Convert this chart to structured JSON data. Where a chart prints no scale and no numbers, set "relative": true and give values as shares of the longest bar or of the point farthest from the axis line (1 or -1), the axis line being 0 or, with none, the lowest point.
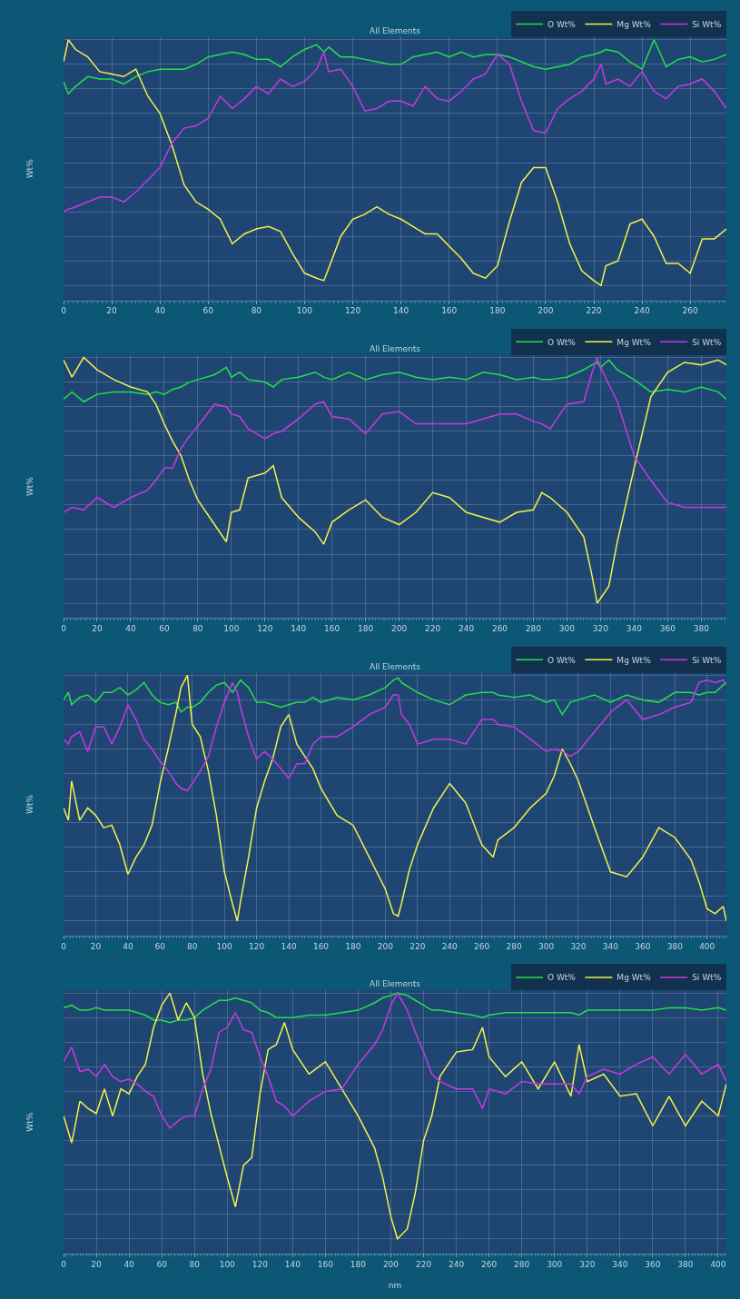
{
  "chart_data": [
    {
      "type": "line",
      "title": "All Elements",
      "ylabel": "Wt%",
      "relative": true,
      "grid": true,
      "legend": "top right",
      "marker": "none",
      "line_style": "solid",
      "xlim": [
        0,
        275
      ],
      "xticks": [
        0,
        20,
        40,
        60,
        80,
        100,
        120,
        140,
        160,
        180,
        200,
        220,
        240,
        260
      ],
      "x": [
        0,
        2,
        5,
        10,
        15,
        20,
        25,
        30,
        35,
        40,
        45,
        50,
        55,
        60,
        65,
        70,
        75,
        80,
        85,
        90,
        95,
        100,
        105,
        108,
        110,
        115,
        120,
        125,
        130,
        135,
        140,
        145,
        150,
        155,
        160,
        165,
        170,
        175,
        180,
        185,
        190,
        195,
        200,
        205,
        210,
        215,
        220,
        223,
        225,
        230,
        235,
        240,
        245,
        250,
        255,
        260,
        265,
        270,
        275
      ],
      "series": [
        {
          "name": "O Wt%",
          "color": "#22e04a",
          "values": [
            0.83,
            0.78,
            0.81,
            0.85,
            0.84,
            0.84,
            0.82,
            0.85,
            0.87,
            0.88,
            0.88,
            0.88,
            0.9,
            0.93,
            0.94,
            0.95,
            0.94,
            0.92,
            0.92,
            0.89,
            0.93,
            0.96,
            0.98,
            0.95,
            0.97,
            0.93,
            0.93,
            0.92,
            0.91,
            0.9,
            0.9,
            0.93,
            0.94,
            0.95,
            0.93,
            0.95,
            0.93,
            0.94,
            0.94,
            0.93,
            0.91,
            0.89,
            0.88,
            0.89,
            0.9,
            0.93,
            0.94,
            0.95,
            0.96,
            0.95,
            0.91,
            0.88,
            1.0,
            0.89,
            0.92,
            0.93,
            0.91,
            0.92,
            0.94
          ]
        },
        {
          "name": "Mg Wt%",
          "color": "#f2f24a",
          "values": [
            0.91,
            1.0,
            0.96,
            0.93,
            0.87,
            0.86,
            0.85,
            0.88,
            0.77,
            0.7,
            0.57,
            0.41,
            0.34,
            0.31,
            0.27,
            0.17,
            0.21,
            0.23,
            0.24,
            0.22,
            0.13,
            0.05,
            0.03,
            0.02,
            0.07,
            0.2,
            0.27,
            0.29,
            0.32,
            0.29,
            0.27,
            0.24,
            0.21,
            0.21,
            0.16,
            0.11,
            0.05,
            0.03,
            0.08,
            0.26,
            0.42,
            0.48,
            0.48,
            0.34,
            0.17,
            0.06,
            0.02,
            0,
            0.08,
            0.1,
            0.25,
            0.27,
            0.2,
            0.09,
            0.09,
            0.05,
            0.19,
            0.19,
            0.23
          ]
        },
        {
          "name": "Si Wt%",
          "color": "#c838e0",
          "values": [
            0.3,
            0.31,
            0.32,
            0.34,
            0.36,
            0.36,
            0.34,
            0.38,
            0.43,
            0.48,
            0.58,
            0.64,
            0.65,
            0.68,
            0.77,
            0.72,
            0.76,
            0.81,
            0.78,
            0.84,
            0.81,
            0.83,
            0.88,
            0.95,
            0.87,
            0.88,
            0.81,
            0.71,
            0.72,
            0.75,
            0.75,
            0.73,
            0.81,
            0.76,
            0.75,
            0.79,
            0.84,
            0.86,
            0.94,
            0.9,
            0.75,
            0.63,
            0.62,
            0.72,
            0.76,
            0.79,
            0.84,
            0.9,
            0.82,
            0.84,
            0.81,
            0.87,
            0.79,
            0.76,
            0.81,
            0.82,
            0.84,
            0.79,
            0.72
          ]
        }
      ]
    },
    {
      "type": "line",
      "title": "All Elements",
      "ylabel": "Wt%",
      "relative": true,
      "grid": true,
      "legend": "top right",
      "marker": "none",
      "line_style": "solid",
      "xlim": [
        0,
        395
      ],
      "xticks": [
        0,
        20,
        40,
        60,
        80,
        100,
        120,
        140,
        160,
        180,
        200,
        220,
        240,
        260,
        280,
        300,
        320,
        340,
        360,
        380
      ],
      "x": [
        0,
        5,
        12,
        20,
        30,
        40,
        50,
        55,
        60,
        65,
        70,
        75,
        80,
        90,
        97,
        100,
        105,
        110,
        120,
        125,
        130,
        140,
        150,
        155,
        160,
        170,
        180,
        190,
        200,
        210,
        220,
        230,
        240,
        250,
        260,
        270,
        280,
        285,
        290,
        300,
        310,
        315,
        318,
        320,
        325,
        330,
        340,
        350,
        360,
        370,
        380,
        390,
        395
      ],
      "series": [
        {
          "name": "O Wt%",
          "color": "#22e04a",
          "values": [
            0.83,
            0.86,
            0.82,
            0.85,
            0.86,
            0.86,
            0.85,
            0.86,
            0.85,
            0.87,
            0.88,
            0.9,
            0.91,
            0.93,
            0.96,
            0.92,
            0.94,
            0.91,
            0.9,
            0.88,
            0.91,
            0.92,
            0.94,
            0.92,
            0.91,
            0.94,
            0.91,
            0.93,
            0.94,
            0.92,
            0.91,
            0.92,
            0.91,
            0.94,
            0.93,
            0.91,
            0.92,
            0.91,
            0.91,
            0.92,
            0.95,
            0.97,
            0.98,
            0.96,
            0.99,
            0.95,
            0.91,
            0.86,
            0.87,
            0.86,
            0.88,
            0.86,
            0.83
          ]
        },
        {
          "name": "Mg Wt%",
          "color": "#f2f24a",
          "values": [
            0.99,
            0.92,
            1.0,
            0.95,
            0.91,
            0.88,
            0.86,
            0.81,
            0.73,
            0.66,
            0.6,
            0.5,
            0.42,
            0.32,
            0.25,
            0.37,
            0.38,
            0.51,
            0.53,
            0.56,
            0.43,
            0.35,
            0.29,
            0.24,
            0.33,
            0.38,
            0.42,
            0.35,
            0.32,
            0.37,
            0.45,
            0.43,
            0.37,
            0.35,
            0.33,
            0.37,
            0.38,
            0.45,
            0.43,
            0.37,
            0.27,
            0.11,
            0,
            0.02,
            0.07,
            0.25,
            0.55,
            0.84,
            0.94,
            0.98,
            0.97,
            0.99,
            0.97
          ]
        },
        {
          "name": "Si Wt%",
          "color": "#c838e0",
          "values": [
            0.37,
            0.39,
            0.38,
            0.43,
            0.39,
            0.43,
            0.46,
            0.5,
            0.55,
            0.55,
            0.63,
            0.68,
            0.72,
            0.81,
            0.8,
            0.77,
            0.76,
            0.71,
            0.67,
            0.69,
            0.7,
            0.75,
            0.81,
            0.82,
            0.76,
            0.75,
            0.69,
            0.77,
            0.78,
            0.73,
            0.73,
            0.73,
            0.73,
            0.75,
            0.77,
            0.77,
            0.74,
            0.73,
            0.71,
            0.81,
            0.82,
            0.94,
            1.0,
            0.96,
            0.89,
            0.82,
            0.6,
            0.5,
            0.41,
            0.39,
            0.39,
            0.39,
            0.39
          ]
        }
      ]
    },
    {
      "type": "line",
      "title": "All Elements",
      "ylabel": "Wt%",
      "relative": true,
      "grid": true,
      "legend": "top right",
      "marker": "none",
      "line_style": "solid",
      "xlim": [
        0,
        412
      ],
      "xticks": [
        0,
        20,
        40,
        60,
        80,
        100,
        120,
        140,
        160,
        180,
        200,
        220,
        240,
        260,
        280,
        300,
        320,
        340,
        360,
        380,
        400
      ],
      "x": [
        0,
        3,
        5,
        10,
        15,
        20,
        25,
        30,
        35,
        40,
        45,
        50,
        55,
        60,
        65,
        70,
        73,
        77,
        80,
        85,
        90,
        95,
        100,
        105,
        108,
        110,
        115,
        120,
        125,
        130,
        135,
        140,
        145,
        150,
        155,
        160,
        170,
        180,
        190,
        200,
        205,
        208,
        210,
        215,
        220,
        230,
        240,
        250,
        260,
        267,
        270,
        280,
        290,
        300,
        305,
        310,
        315,
        320,
        330,
        340,
        350,
        360,
        370,
        380,
        390,
        395,
        400,
        405,
        410,
        412
      ],
      "series": [
        {
          "name": "O Wt%",
          "color": "#22e04a",
          "values": [
            0.9,
            0.93,
            0.88,
            0.91,
            0.92,
            0.89,
            0.93,
            0.93,
            0.95,
            0.92,
            0.94,
            0.97,
            0.92,
            0.89,
            0.88,
            0.89,
            0.85,
            0.87,
            0.87,
            0.89,
            0.93,
            0.96,
            0.97,
            0.93,
            0.96,
            0.98,
            0.95,
            0.89,
            0.89,
            0.88,
            0.87,
            0.88,
            0.89,
            0.89,
            0.91,
            0.89,
            0.91,
            0.9,
            0.92,
            0.95,
            0.98,
            0.99,
            0.97,
            0.95,
            0.93,
            0.9,
            0.88,
            0.92,
            0.93,
            0.93,
            0.92,
            0.91,
            0.92,
            0.89,
            0.9,
            0.84,
            0.89,
            0.9,
            0.92,
            0.89,
            0.92,
            0.9,
            0.89,
            0.93,
            0.93,
            0.92,
            0.93,
            0.93,
            0.96,
            0.97
          ]
        },
        {
          "name": "Mg Wt%",
          "color": "#f2f24a",
          "values": [
            0.46,
            0.41,
            0.57,
            0.41,
            0.46,
            0.43,
            0.38,
            0.39,
            0.31,
            0.19,
            0.26,
            0.31,
            0.39,
            0.56,
            0.7,
            0.85,
            0.95,
            1.0,
            0.8,
            0.75,
            0.61,
            0.43,
            0.2,
            0.07,
            0,
            0.08,
            0.26,
            0.46,
            0.57,
            0.66,
            0.79,
            0.84,
            0.72,
            0.67,
            0.62,
            0.54,
            0.43,
            0.39,
            0.26,
            0.13,
            0.03,
            0.02,
            0.07,
            0.21,
            0.31,
            0.46,
            0.56,
            0.48,
            0.31,
            0.26,
            0.33,
            0.38,
            0.46,
            0.52,
            0.59,
            0.7,
            0.64,
            0.57,
            0.38,
            0.2,
            0.18,
            0.26,
            0.38,
            0.34,
            0.25,
            0.16,
            0.05,
            0.03,
            0.06,
            0
          ]
        },
        {
          "name": "Si Wt%",
          "color": "#c838e0",
          "values": [
            0.74,
            0.72,
            0.75,
            0.77,
            0.69,
            0.79,
            0.79,
            0.72,
            0.79,
            0.88,
            0.82,
            0.74,
            0.7,
            0.65,
            0.61,
            0.56,
            0.54,
            0.53,
            0.56,
            0.61,
            0.67,
            0.79,
            0.89,
            0.97,
            0.93,
            0.87,
            0.75,
            0.66,
            0.69,
            0.66,
            0.62,
            0.58,
            0.64,
            0.64,
            0.72,
            0.75,
            0.75,
            0.79,
            0.84,
            0.87,
            0.92,
            0.92,
            0.84,
            0.8,
            0.72,
            0.74,
            0.74,
            0.72,
            0.82,
            0.82,
            0.8,
            0.79,
            0.74,
            0.69,
            0.7,
            0.69,
            0.67,
            0.69,
            0.77,
            0.85,
            0.9,
            0.82,
            0.84,
            0.87,
            0.89,
            0.97,
            0.98,
            0.97,
            0.98,
            0.96
          ]
        }
      ]
    },
    {
      "type": "line",
      "title": "All Elements",
      "ylabel": "Wt%",
      "xlabel": "nm",
      "relative": true,
      "grid": true,
      "legend": "top right",
      "marker": "none",
      "line_style": "solid",
      "xlim": [
        0,
        405
      ],
      "xticks": [
        0,
        20,
        40,
        60,
        80,
        100,
        120,
        140,
        160,
        180,
        200,
        220,
        240,
        260,
        280,
        300,
        320,
        340,
        360,
        380,
        400
      ],
      "x": [
        0,
        5,
        10,
        15,
        20,
        25,
        30,
        35,
        40,
        45,
        50,
        55,
        60,
        65,
        70,
        75,
        80,
        85,
        90,
        95,
        100,
        105,
        110,
        115,
        120,
        125,
        130,
        135,
        140,
        150,
        160,
        170,
        180,
        190,
        195,
        200,
        204,
        210,
        215,
        220,
        225,
        230,
        240,
        250,
        256,
        260,
        270,
        280,
        290,
        300,
        310,
        315,
        320,
        330,
        340,
        350,
        360,
        370,
        380,
        390,
        400,
        405
      ],
      "series": [
        {
          "name": "O Wt%",
          "color": "#22e04a",
          "values": [
            0.94,
            0.95,
            0.93,
            0.93,
            0.94,
            0.93,
            0.93,
            0.93,
            0.93,
            0.92,
            0.91,
            0.89,
            0.89,
            0.88,
            0.89,
            0.89,
            0.9,
            0.93,
            0.95,
            0.97,
            0.97,
            0.98,
            0.97,
            0.96,
            0.93,
            0.92,
            0.9,
            0.9,
            0.9,
            0.91,
            0.91,
            0.92,
            0.93,
            0.96,
            0.98,
            0.99,
            1.0,
            0.99,
            0.97,
            0.95,
            0.93,
            0.93,
            0.92,
            0.91,
            0.9,
            0.91,
            0.92,
            0.92,
            0.92,
            0.92,
            0.92,
            0.91,
            0.93,
            0.93,
            0.93,
            0.93,
            0.93,
            0.94,
            0.94,
            0.93,
            0.94,
            0.93
          ]
        },
        {
          "name": "Mg Wt%",
          "color": "#f2f24a",
          "values": [
            0.5,
            0.39,
            0.56,
            0.53,
            0.51,
            0.61,
            0.5,
            0.61,
            0.59,
            0.66,
            0.71,
            0.86,
            0.95,
            1.0,
            0.89,
            0.96,
            0.9,
            0.67,
            0.51,
            0.38,
            0.25,
            0.13,
            0.3,
            0.33,
            0.59,
            0.77,
            0.79,
            0.88,
            0.77,
            0.67,
            0.72,
            0.61,
            0.5,
            0.37,
            0.25,
            0.09,
            0,
            0.04,
            0.19,
            0.4,
            0.5,
            0.66,
            0.76,
            0.77,
            0.86,
            0.74,
            0.66,
            0.72,
            0.61,
            0.72,
            0.58,
            0.79,
            0.64,
            0.67,
            0.58,
            0.59,
            0.46,
            0.58,
            0.46,
            0.56,
            0.5,
            0.63
          ]
        },
        {
          "name": "Si Wt%",
          "color": "#c838e0",
          "values": [
            0.72,
            0.78,
            0.68,
            0.69,
            0.66,
            0.71,
            0.66,
            0.64,
            0.65,
            0.63,
            0.6,
            0.58,
            0.5,
            0.45,
            0.48,
            0.5,
            0.5,
            0.61,
            0.69,
            0.84,
            0.86,
            0.92,
            0.85,
            0.84,
            0.74,
            0.66,
            0.56,
            0.54,
            0.5,
            0.56,
            0.6,
            0.61,
            0.71,
            0.79,
            0.85,
            0.95,
            1.0,
            0.93,
            0.84,
            0.76,
            0.67,
            0.64,
            0.61,
            0.61,
            0.53,
            0.61,
            0.59,
            0.64,
            0.63,
            0.63,
            0.63,
            0.59,
            0.66,
            0.69,
            0.67,
            0.71,
            0.74,
            0.67,
            0.75,
            0.67,
            0.71,
            0.64
          ]
        }
      ]
    }
  ]
}
